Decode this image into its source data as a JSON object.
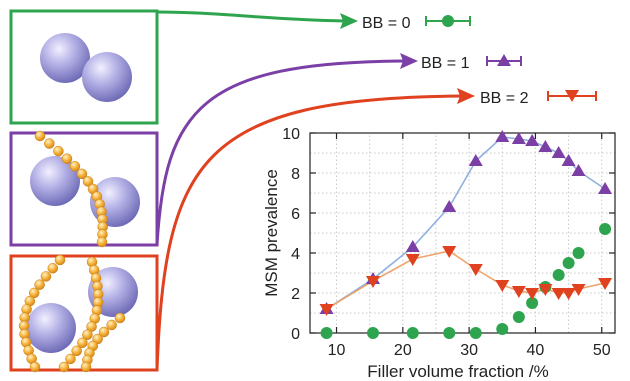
{
  "chart_data": {
    "type": "scatter",
    "title": "",
    "xlabel": "Filler volume fraction /%",
    "ylabel": "MSM prevalence",
    "xlim": [
      6,
      52
    ],
    "ylim": [
      0,
      10
    ],
    "xticks": [
      10,
      20,
      30,
      40,
      50
    ],
    "yticks": [
      0,
      2,
      4,
      6,
      8,
      10
    ],
    "grid": true,
    "legend_position": "top-right",
    "series": [
      {
        "name": "BB = 0",
        "color": "#2ea44f",
        "marker": "circle",
        "line": false,
        "x": [
          8.5,
          15.5,
          21.5,
          27,
          31,
          35,
          37.5,
          39.5,
          41.5,
          43.5,
          45,
          46.5,
          50.5
        ],
        "y": [
          0,
          0,
          0,
          0,
          0,
          0.2,
          0.8,
          1.5,
          2.3,
          2.9,
          3.5,
          4.0,
          5.2
        ]
      },
      {
        "name": "BB = 1",
        "color": "#7b3fa6",
        "line_color": "#8fb0e0",
        "marker": "triangle-up",
        "line": true,
        "x": [
          8.5,
          15.5,
          21.5,
          27,
          31,
          35,
          37.5,
          39.5,
          41.5,
          43.5,
          45,
          46.5,
          50.5
        ],
        "y": [
          1.2,
          2.7,
          4.3,
          6.3,
          8.6,
          9.8,
          9.7,
          9.6,
          9.3,
          9.0,
          8.6,
          8.1,
          7.2
        ]
      },
      {
        "name": "BB = 2",
        "color": "#e0421f",
        "line_color": "#f0a36a",
        "marker": "triangle-down",
        "line": true,
        "x": [
          8.5,
          15.5,
          21.5,
          27,
          31,
          35,
          37.5,
          39.5,
          41.5,
          43.5,
          45,
          46.5,
          50.5
        ],
        "y": [
          1.2,
          2.6,
          3.7,
          4.1,
          3.2,
          2.4,
          2.1,
          2.0,
          2.2,
          2.0,
          2.0,
          2.2,
          2.5
        ]
      }
    ]
  },
  "legend": {
    "items": [
      {
        "label": "BB = 0"
      },
      {
        "label": "BB = 1"
      },
      {
        "label": "BB = 2"
      }
    ]
  },
  "panels": [
    {
      "bb": 0,
      "color": "#2ea44f"
    },
    {
      "bb": 1,
      "color": "#7b3fa6"
    },
    {
      "bb": 2,
      "color": "#e0421f"
    }
  ]
}
